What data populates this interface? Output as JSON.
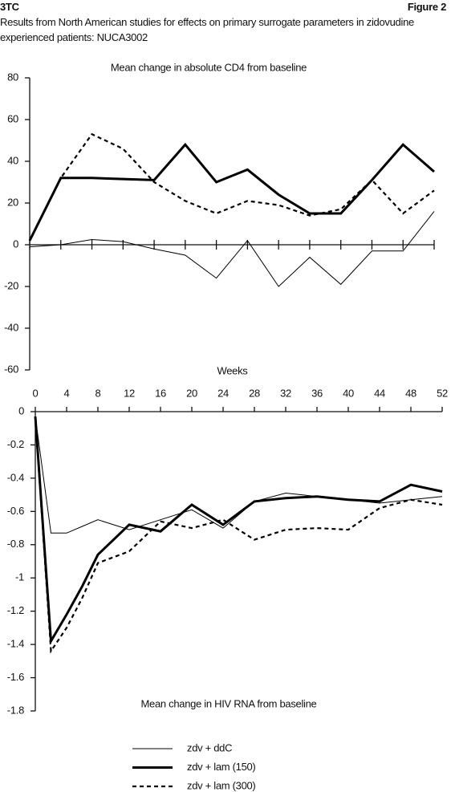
{
  "header": {
    "left": "3TC",
    "right": "Figure 2",
    "subtitle": "Results from North American studies for effects on primary surrogate parameters in zidovudine experienced patients: NUCA3002"
  },
  "chart_data": [
    {
      "type": "line",
      "title": "Mean change in absolute CD4 from baseline",
      "x": [
        0,
        4,
        8,
        12,
        16,
        20,
        24,
        28,
        32,
        36,
        40,
        44,
        48,
        52
      ],
      "xlim": [
        0,
        52
      ],
      "ylim": [
        -60,
        80
      ],
      "yticks": [
        -60,
        -40,
        -20,
        0,
        20,
        40,
        60,
        80
      ],
      "series": [
        {
          "color": "#000000",
          "width": 1,
          "dash": false,
          "values": [
            -1,
            0,
            2.5,
            1.5,
            -2,
            -5,
            -16,
            2,
            -20,
            -6,
            -19,
            -3,
            -3,
            16
          ]
        },
        {
          "color": "#000000",
          "width": 3,
          "dash": false,
          "values": [
            2,
            32,
            32,
            31.5,
            31,
            48,
            30,
            36,
            24,
            15,
            15,
            31,
            48,
            35
          ]
        },
        {
          "color": "#000000",
          "width": 2.2,
          "dash": true,
          "values": [
            2,
            32,
            53,
            46,
            30,
            21,
            15,
            21,
            19,
            14,
            17,
            31,
            15,
            26
          ]
        }
      ]
    },
    {
      "type": "line",
      "title": "Mean change in HIV RNA from baseline",
      "x_label": "Weeks",
      "x": [
        0,
        2,
        4,
        6,
        8,
        12,
        16,
        20,
        24,
        28,
        32,
        36,
        40,
        44,
        48,
        52
      ],
      "xlim": [
        0,
        52
      ],
      "xticks": [
        0,
        4,
        8,
        12,
        16,
        20,
        24,
        28,
        32,
        36,
        40,
        44,
        48,
        52
      ],
      "ylim": [
        -1.8,
        0
      ],
      "yticks": [
        0,
        -0.2,
        -0.4,
        -0.6,
        -0.8,
        -1,
        -1.2,
        -1.4,
        -1.6,
        -1.8
      ],
      "series": [
        {
          "name": "zdv + ddC",
          "color": "#000000",
          "width": 1,
          "dash": false,
          "values": [
            -0.03,
            -0.73,
            -0.73,
            -0.69,
            -0.65,
            -0.71,
            -0.65,
            -0.59,
            -0.7,
            -0.54,
            -0.49,
            -0.51,
            -0.53,
            -0.55,
            -0.53,
            -0.51
          ]
        },
        {
          "name": "zdv + lam (150)",
          "color": "#000000",
          "width": 3,
          "dash": false,
          "values": [
            -0.03,
            -1.38,
            -1.22,
            -1.05,
            -0.86,
            -0.68,
            -0.72,
            -0.56,
            -0.68,
            -0.54,
            -0.52,
            -0.51,
            -0.53,
            -0.54,
            -0.44,
            -0.48
          ]
        },
        {
          "name": "zdv + lam (300)",
          "color": "#000000",
          "width": 2.2,
          "dash": true,
          "values": [
            -0.03,
            -1.44,
            -1.3,
            -1.12,
            -0.91,
            -0.84,
            -0.66,
            -0.7,
            -0.65,
            -0.77,
            -0.71,
            -0.7,
            -0.71,
            -0.58,
            -0.53,
            -0.56
          ]
        }
      ]
    }
  ]
}
